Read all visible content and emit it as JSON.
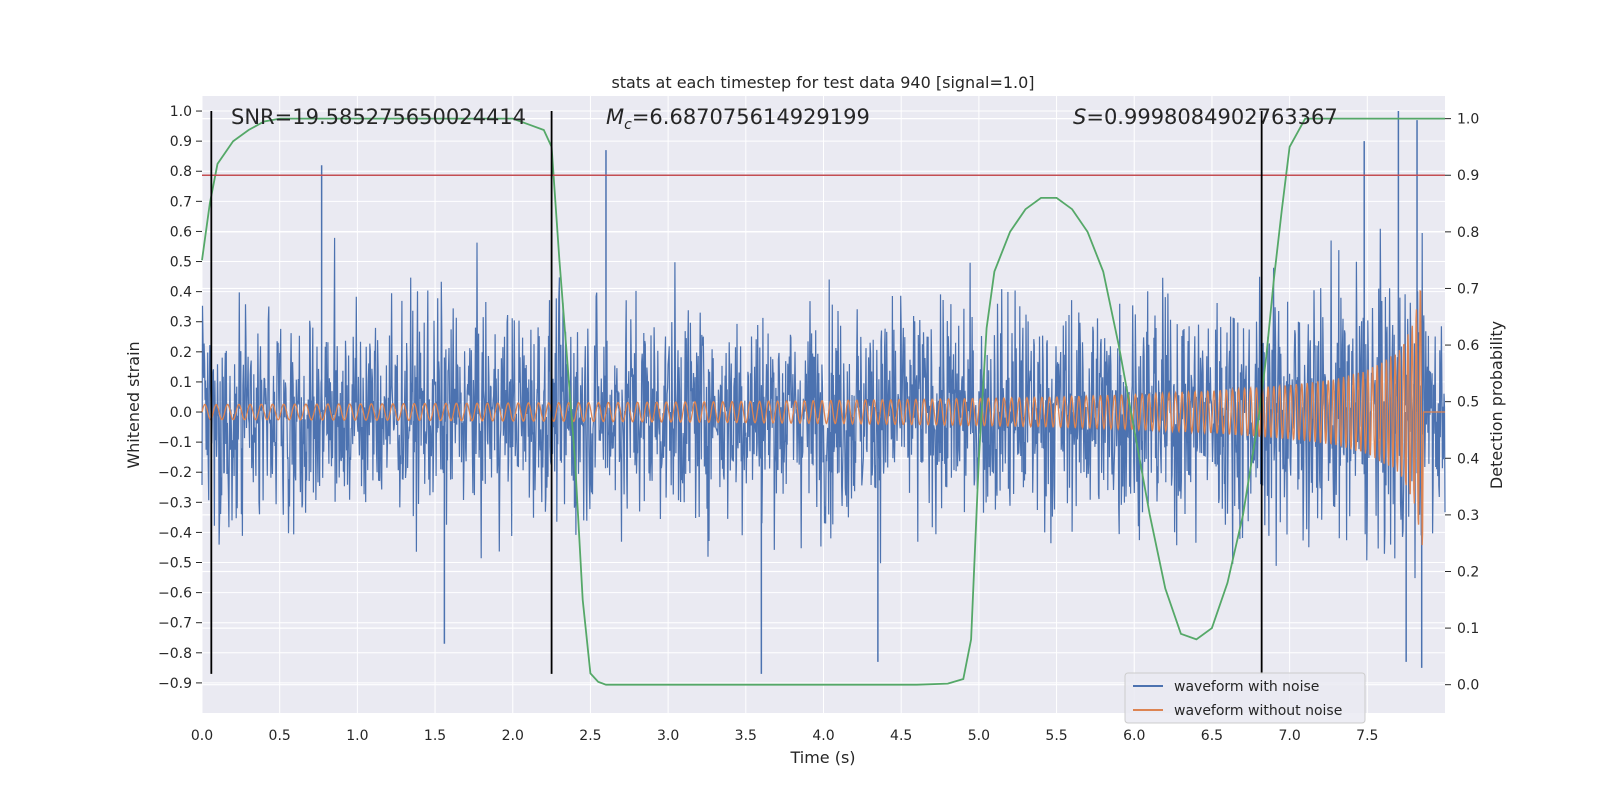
{
  "chart_data": {
    "type": "line",
    "title": "stats at each timestep for test data 940 [signal=1.0]",
    "xlabel": "Time (s)",
    "ylabel": "Whitened strain",
    "ylabel_right": "Detection probability",
    "xlim": [
      0,
      8
    ],
    "ylim": [
      -1.0,
      1.05
    ],
    "ylim_right": [
      -0.05,
      1.04
    ],
    "x_ticks": [
      0.0,
      0.5,
      1.0,
      1.5,
      2.0,
      2.5,
      3.0,
      3.5,
      4.0,
      4.5,
      5.0,
      5.5,
      6.0,
      6.5,
      7.0,
      7.5
    ],
    "x_tick_labels": [
      "0.0",
      "0.5",
      "1.0",
      "1.5",
      "2.0",
      "2.5",
      "3.0",
      "3.5",
      "4.0",
      "4.5",
      "5.0",
      "5.5",
      "6.0",
      "6.5",
      "7.0",
      "7.5"
    ],
    "y_ticks": [
      -0.9,
      -0.8,
      -0.7,
      -0.6,
      -0.5,
      -0.4,
      -0.3,
      -0.2,
      -0.1,
      0.0,
      0.1,
      0.2,
      0.3,
      0.4,
      0.5,
      0.6,
      0.7,
      0.8,
      0.9,
      1.0
    ],
    "y_tick_labels": [
      "−0.9",
      "−0.8",
      "−0.7",
      "−0.6",
      "−0.5",
      "−0.4",
      "−0.3",
      "−0.2",
      "−0.1",
      "0.0",
      "0.1",
      "0.2",
      "0.3",
      "0.4",
      "0.5",
      "0.6",
      "0.7",
      "0.8",
      "0.9",
      "1.0"
    ],
    "y_ticks_right": [
      0.0,
      0.1,
      0.2,
      0.3,
      0.4,
      0.5,
      0.6,
      0.7,
      0.8,
      0.9,
      1.0
    ],
    "y_tick_labels_right": [
      "0.0",
      "0.1",
      "0.2",
      "0.3",
      "0.4",
      "0.5",
      "0.6",
      "0.7",
      "0.8",
      "0.9",
      "1.0"
    ],
    "grid": true,
    "legend_position": "bottom-right",
    "annotations": {
      "snr": "SNR=19.585275650024414",
      "mc_symbol": "M",
      "mc_sub": "c",
      "mc_value": "=6.687075614929199",
      "s_symbol": "S",
      "s_value": "=0.9998084902763367"
    },
    "series": [
      {
        "name": "waveform with noise",
        "color": "#4c72b0",
        "axis": "left",
        "envelope_x": [
          0,
          1,
          2,
          3,
          4,
          5,
          6,
          7,
          7.85,
          8
        ],
        "envelope_typical": [
          0.33,
          0.33,
          0.33,
          0.33,
          0.33,
          0.34,
          0.35,
          0.38,
          0.45,
          0.4
        ],
        "peaks_high": [
          [
            0.77,
            0.82
          ],
          [
            2.6,
            0.87
          ],
          [
            7.48,
            0.9
          ],
          [
            7.7,
            1.0
          ],
          [
            7.82,
            0.97
          ]
        ],
        "peaks_low": [
          [
            1.56,
            -0.77
          ],
          [
            3.6,
            -0.87
          ],
          [
            4.35,
            -0.83
          ],
          [
            7.75,
            -0.83
          ],
          [
            7.85,
            -0.85
          ]
        ]
      },
      {
        "name": "waveform without noise",
        "color": "#dd8452",
        "axis": "left",
        "x": [
          0,
          1,
          2,
          3,
          4,
          5,
          5.5,
          6,
          6.5,
          7,
          7.3,
          7.5,
          7.7,
          7.8,
          7.85
        ],
        "amplitude": [
          0.025,
          0.027,
          0.03,
          0.033,
          0.038,
          0.045,
          0.05,
          0.058,
          0.07,
          0.09,
          0.11,
          0.14,
          0.2,
          0.3,
          0.45
        ],
        "cutoff": 7.86
      },
      {
        "name": "",
        "color": "#55a868",
        "axis": "right",
        "x": [
          0.0,
          0.05,
          0.1,
          0.2,
          0.3,
          0.4,
          0.5,
          1.0,
          1.5,
          2.0,
          2.1,
          2.2,
          2.25,
          2.3,
          2.4,
          2.45,
          2.5,
          2.55,
          2.6,
          3.0,
          4.0,
          4.6,
          4.8,
          4.9,
          4.95,
          5.0,
          5.05,
          5.1,
          5.2,
          5.3,
          5.4,
          5.5,
          5.6,
          5.7,
          5.8,
          5.9,
          6.0,
          6.1,
          6.2,
          6.3,
          6.4,
          6.5,
          6.6,
          6.7,
          6.8,
          6.85,
          6.9,
          6.95,
          7.0,
          7.1,
          7.5,
          8.0
        ],
        "y": [
          0.75,
          0.85,
          0.92,
          0.96,
          0.98,
          0.995,
          1.0,
          1.0,
          1.0,
          1.0,
          0.99,
          0.98,
          0.95,
          0.75,
          0.4,
          0.15,
          0.02,
          0.005,
          0.0,
          0.0,
          0.0,
          0.0,
          0.002,
          0.01,
          0.08,
          0.4,
          0.63,
          0.73,
          0.8,
          0.84,
          0.86,
          0.86,
          0.84,
          0.8,
          0.73,
          0.6,
          0.45,
          0.3,
          0.17,
          0.09,
          0.08,
          0.1,
          0.18,
          0.3,
          0.47,
          0.58,
          0.72,
          0.84,
          0.95,
          1.0,
          1.0,
          1.0
        ]
      }
    ],
    "hlines": [
      {
        "value": 0.9,
        "axis": "right",
        "color": "#c44e52"
      }
    ],
    "vlines": [
      {
        "x": 0.06,
        "ymin": -0.87,
        "ymax": 1.0,
        "color": "#000000"
      },
      {
        "x": 2.25,
        "ymin": -0.87,
        "ymax": 1.0,
        "color": "#000000"
      },
      {
        "x": 6.82,
        "ymin": -0.87,
        "ymax": 1.0,
        "color": "#000000"
      }
    ]
  }
}
